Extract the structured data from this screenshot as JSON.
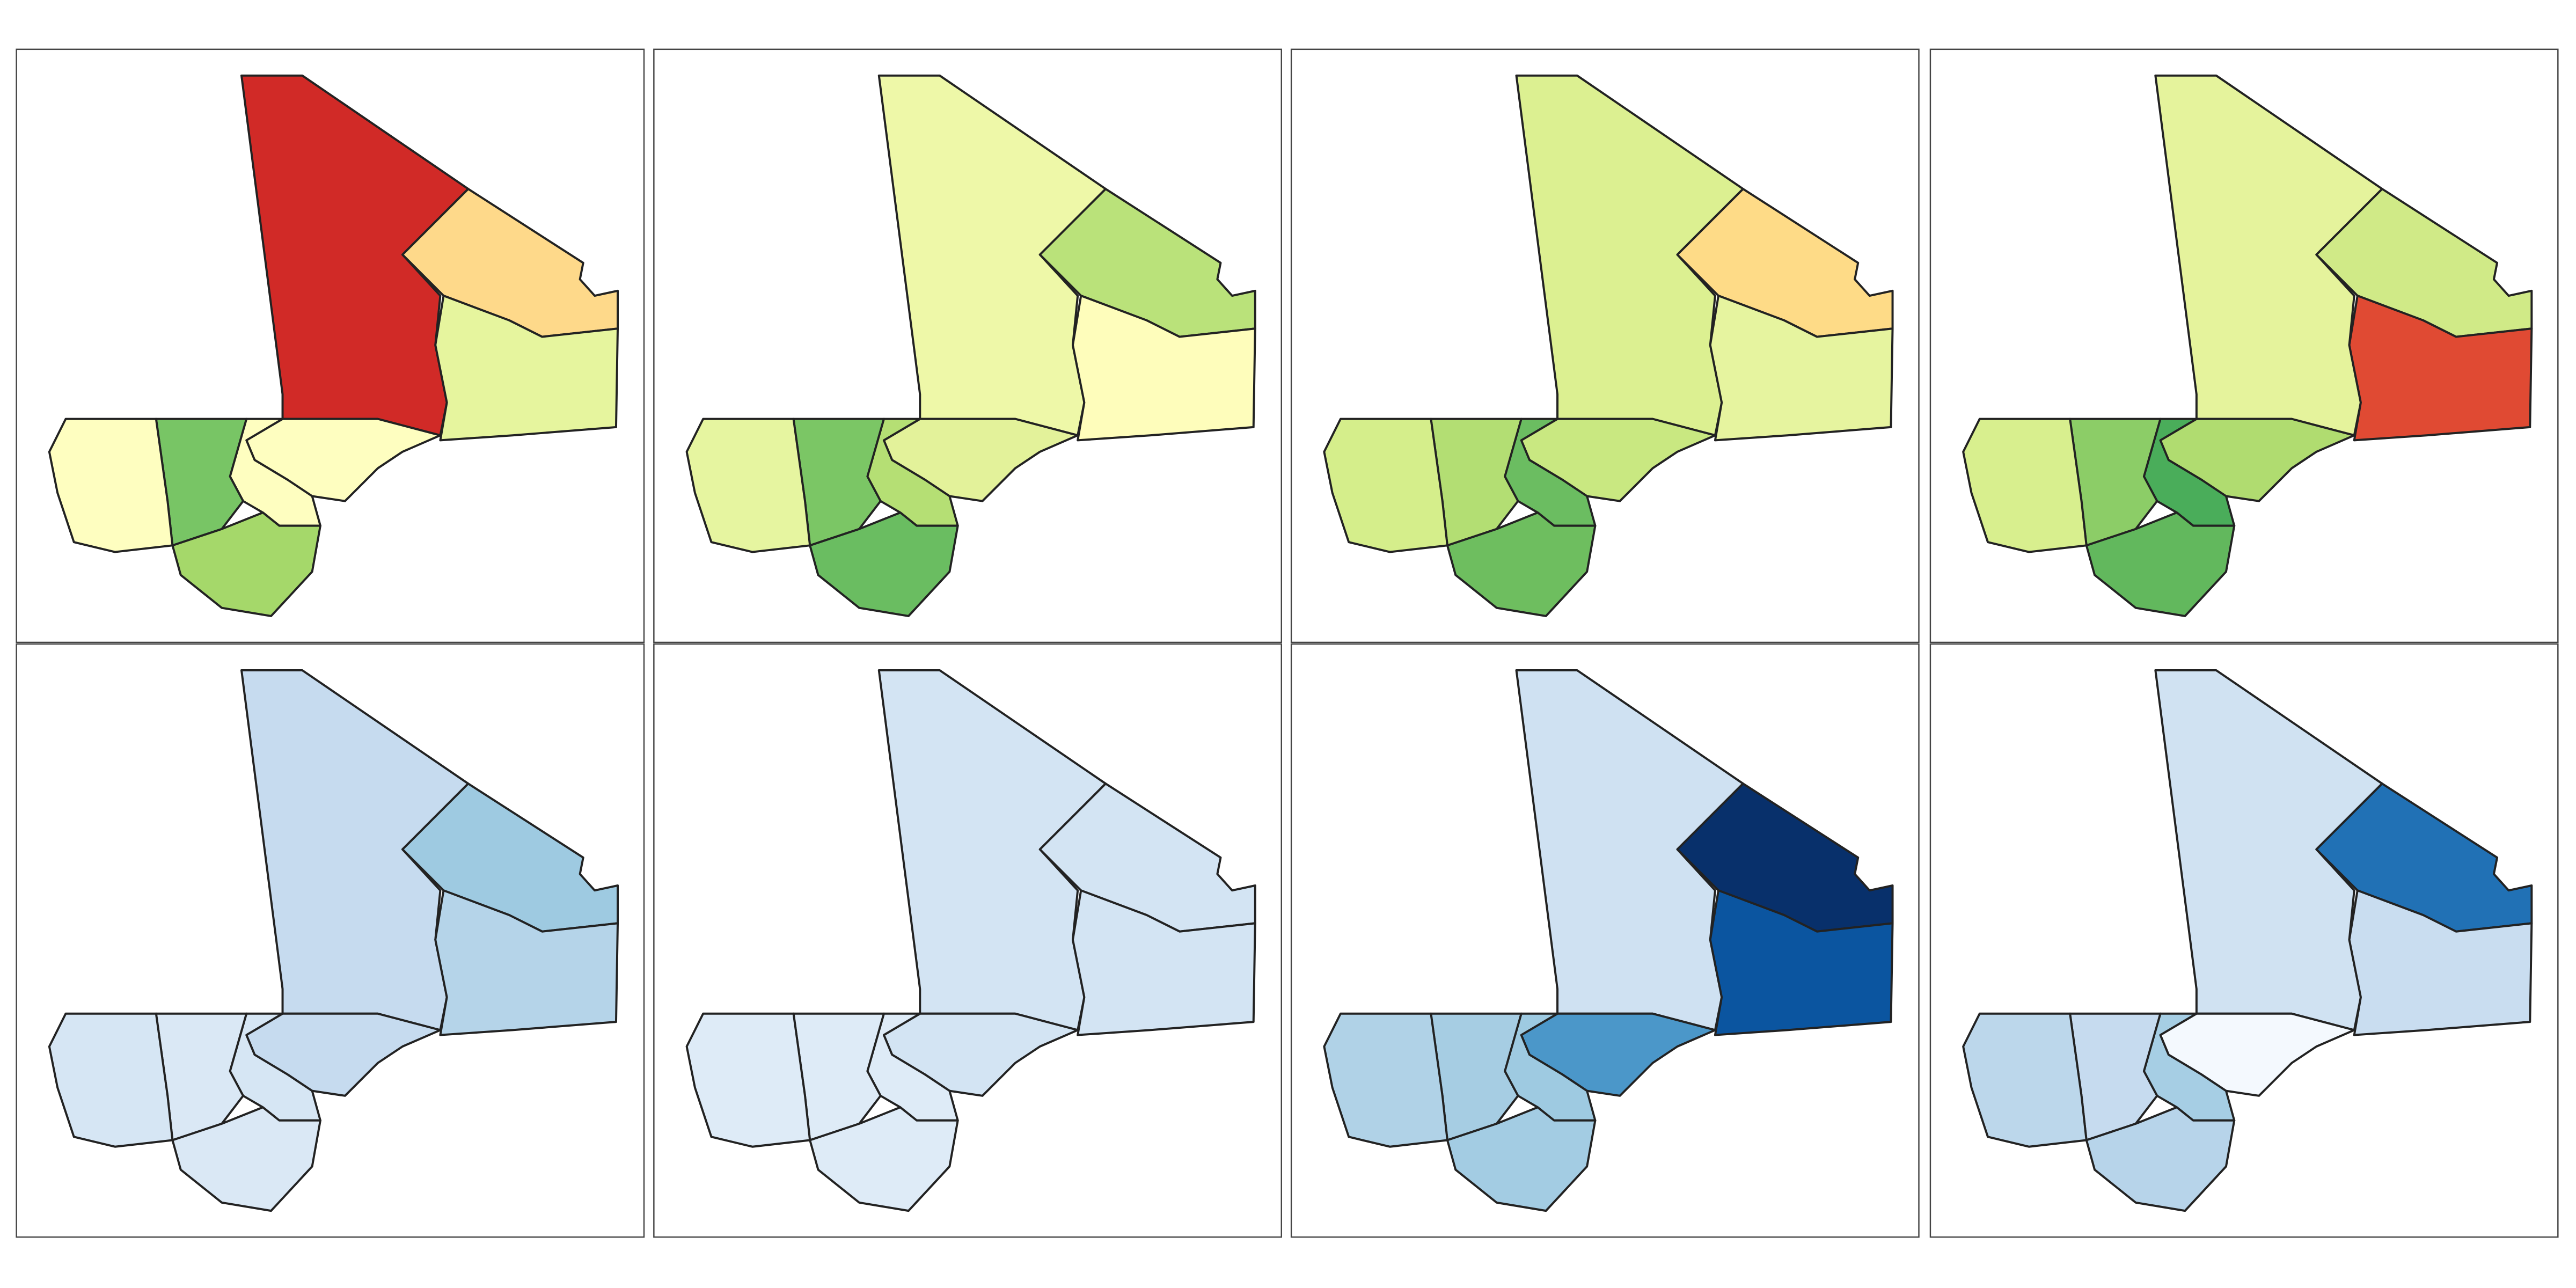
{
  "panels": [
    {
      "colors": [
        "#d12a27",
        "#fed98a",
        "#e6f59e",
        "#fefec0",
        "#fefec0",
        "#78c565",
        "#fefec0",
        "#a5d86a"
      ]
    },
    {
      "colors": [
        "#eef8a8",
        "#bae27a",
        "#fefdbb",
        "#e3f29a",
        "#b5df74",
        "#7bc665",
        "#e6f5a0",
        "#6abd61"
      ]
    },
    {
      "colors": [
        "#dcf091",
        "#fedb87",
        "#e6f49f",
        "#c9e881",
        "#6bbd61",
        "#b3de73",
        "#d5ee8b",
        "#6ebe5f"
      ]
    },
    {
      "colors": [
        "#e5f39c",
        "#d0ea87",
        "#e04a33",
        "#b0dc70",
        "#4aad5a",
        "#8ccd67",
        "#d8ef8e",
        "#62b85d"
      ]
    },
    {
      "colors": [
        "#c6dbef",
        "#9ecae1",
        "#b5d4e9",
        "#c6dbef",
        "#d6e6f4",
        "#dae8f5",
        "#d6e6f4",
        "#dae8f5"
      ]
    },
    {
      "colors": [
        "#d3e4f3",
        "#d3e4f3",
        "#d3e4f3",
        "#d3e4f3",
        "#deebf7",
        "#deebf7",
        "#deebf7",
        "#deebf7"
      ]
    },
    {
      "colors": [
        "#cfe1f2",
        "#08306b",
        "#0b55a0",
        "#4b97c9",
        "#9ecae1",
        "#a6cde3",
        "#b0d2e7",
        "#a3cce3"
      ]
    },
    {
      "colors": [
        "#d0e2f2",
        "#2171b5",
        "#c9ddf0",
        "#f4f9fe",
        "#a6cee4",
        "#c6dbef",
        "#bcd7eb",
        "#b7d4ea"
      ]
    }
  ]
}
